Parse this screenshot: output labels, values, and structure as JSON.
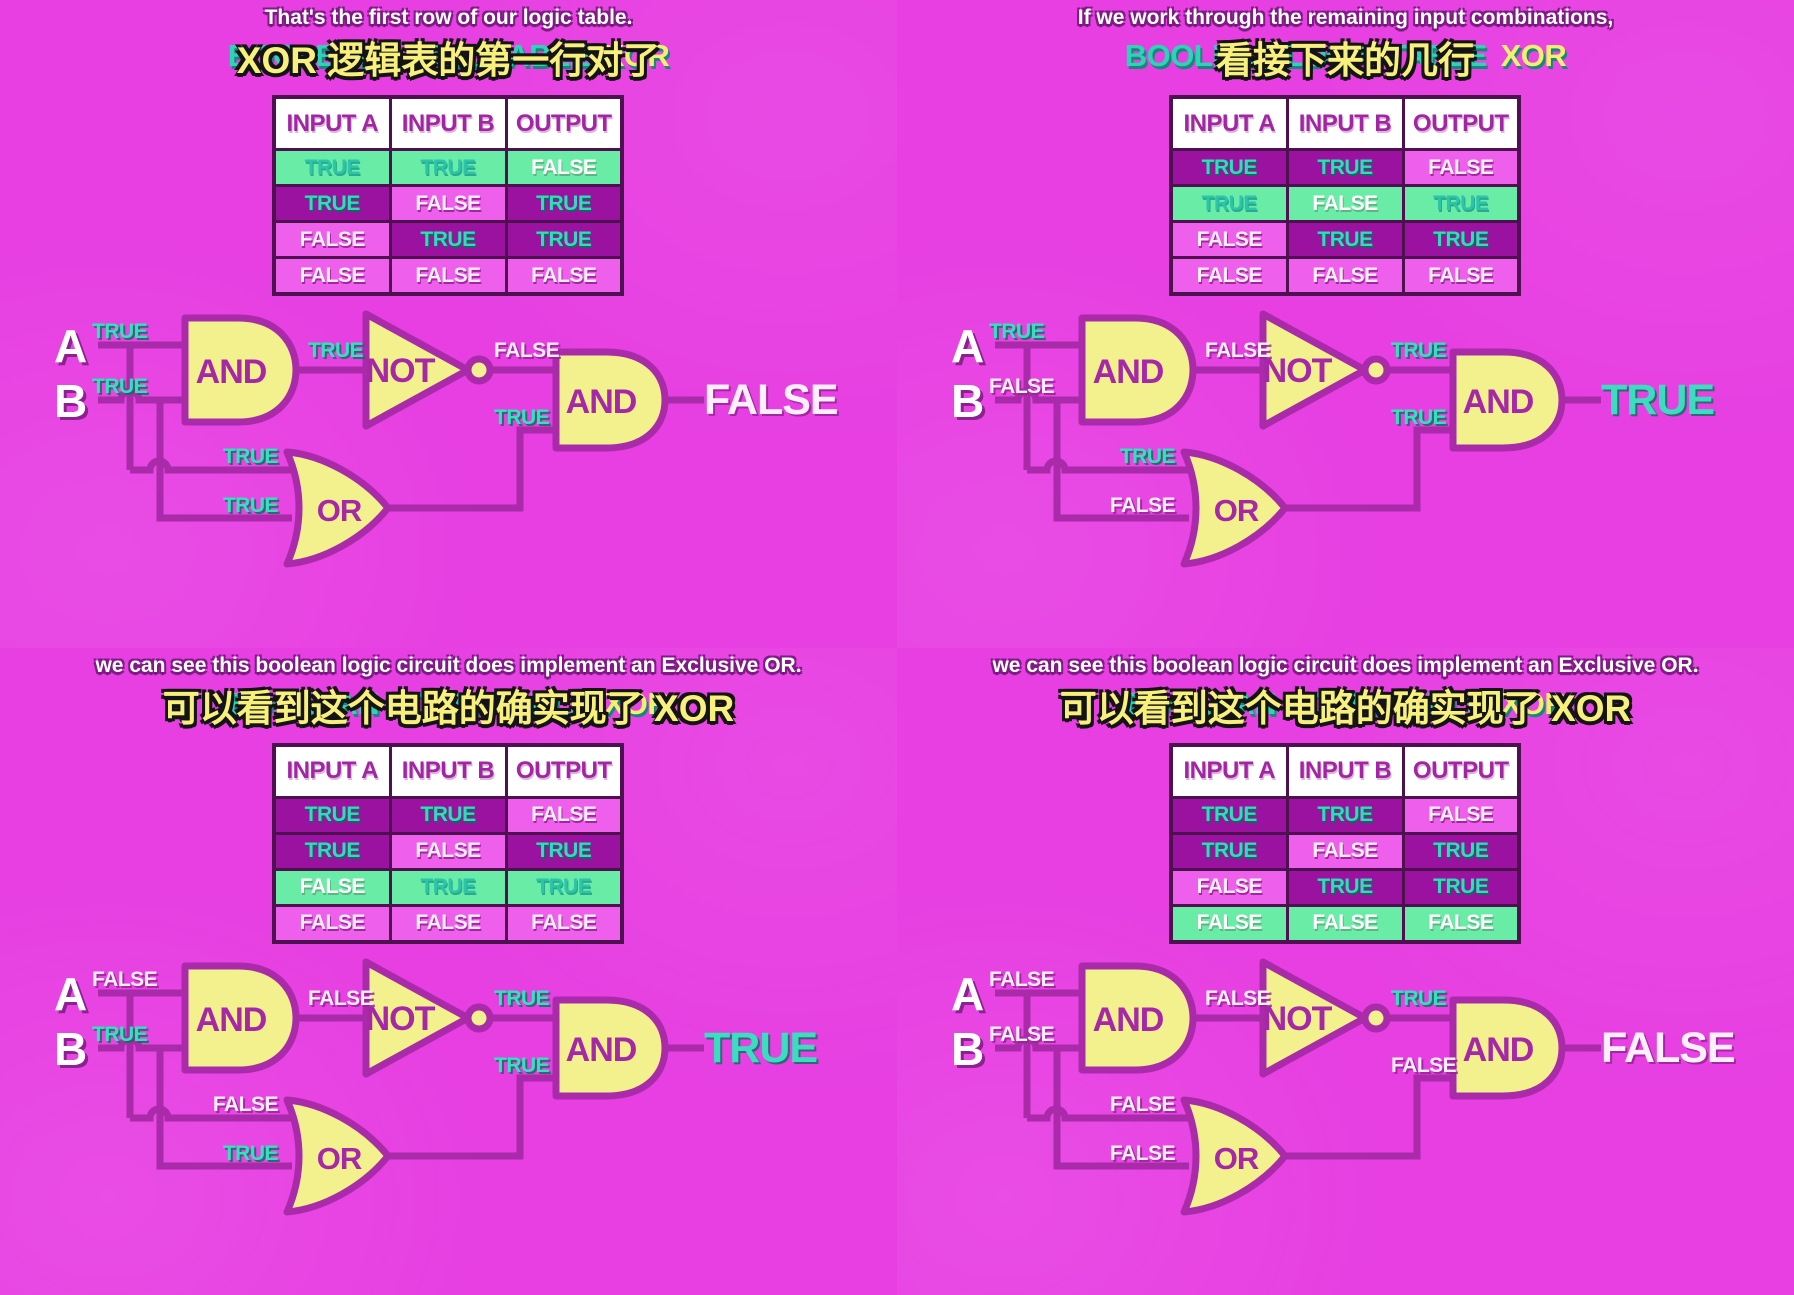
{
  "colors": {
    "background": "#e73fe2",
    "wire": "#a92ba9",
    "gate_fill": "#f3f08e",
    "true_text": "#3cdcc1",
    "false_text": "#ffeefb",
    "true_cell_bg": "#9c12a0",
    "false_cell_bg": "#ee5fec",
    "highlight_row_bg": "#69eda6",
    "title_teal": "#2ed2b6",
    "subtitle_yellow": "#f8f07d"
  },
  "frames": [
    {
      "subtitle_en": "That's the first row of our logic table.",
      "subtitle_zh": "XOR 逻辑表的第一行对了",
      "title_main": "BOOLEAN LOGIC TABLE",
      "title_accent": "XOR",
      "table": {
        "headers": [
          "INPUT A",
          "INPUT B",
          "OUTPUT"
        ],
        "rows": [
          {
            "cells": [
              "TRUE",
              "TRUE",
              "FALSE"
            ],
            "highlighted": true
          },
          {
            "cells": [
              "TRUE",
              "FALSE",
              "TRUE"
            ],
            "highlighted": false
          },
          {
            "cells": [
              "FALSE",
              "TRUE",
              "TRUE"
            ],
            "highlighted": false
          },
          {
            "cells": [
              "FALSE",
              "FALSE",
              "FALSE"
            ],
            "highlighted": false
          }
        ]
      },
      "circuit": {
        "input_a_label": "A",
        "input_b_label": "B",
        "input_a": "TRUE",
        "input_b": "TRUE",
        "gate_and1": "AND",
        "gate_not": "NOT",
        "gate_or": "OR",
        "gate_and2": "AND",
        "and1_out": "TRUE",
        "not_out": "FALSE",
        "or_in_top": "TRUE",
        "or_in_bottom": "TRUE",
        "and2_in_bottom": "TRUE",
        "output": "FALSE"
      }
    },
    {
      "subtitle_en": "If we work through the remaining input combinations,",
      "subtitle_zh": "看接下来的几行",
      "title_main": "BOOLEAN LOGIC TABLE",
      "title_accent": "XOR",
      "table": {
        "headers": [
          "INPUT A",
          "INPUT B",
          "OUTPUT"
        ],
        "rows": [
          {
            "cells": [
              "TRUE",
              "TRUE",
              "FALSE"
            ],
            "highlighted": false
          },
          {
            "cells": [
              "TRUE",
              "FALSE",
              "TRUE"
            ],
            "highlighted": true
          },
          {
            "cells": [
              "FALSE",
              "TRUE",
              "TRUE"
            ],
            "highlighted": false
          },
          {
            "cells": [
              "FALSE",
              "FALSE",
              "FALSE"
            ],
            "highlighted": false
          }
        ]
      },
      "circuit": {
        "input_a_label": "A",
        "input_b_label": "B",
        "input_a": "TRUE",
        "input_b": "FALSE",
        "gate_and1": "AND",
        "gate_not": "NOT",
        "gate_or": "OR",
        "gate_and2": "AND",
        "and1_out": "FALSE",
        "not_out": "TRUE",
        "or_in_top": "TRUE",
        "or_in_bottom": "FALSE",
        "and2_in_bottom": "TRUE",
        "output": "TRUE"
      }
    },
    {
      "subtitle_en": "we can see this boolean logic circuit does implement an Exclusive OR.",
      "subtitle_zh": "可以看到这个电路的确实现了 XOR",
      "title_main": "BOOLEAN LOGIC TABLE",
      "title_accent": "XOR",
      "table": {
        "headers": [
          "INPUT A",
          "INPUT B",
          "OUTPUT"
        ],
        "rows": [
          {
            "cells": [
              "TRUE",
              "TRUE",
              "FALSE"
            ],
            "highlighted": false
          },
          {
            "cells": [
              "TRUE",
              "FALSE",
              "TRUE"
            ],
            "highlighted": false
          },
          {
            "cells": [
              "FALSE",
              "TRUE",
              "TRUE"
            ],
            "highlighted": true
          },
          {
            "cells": [
              "FALSE",
              "FALSE",
              "FALSE"
            ],
            "highlighted": false
          }
        ]
      },
      "circuit": {
        "input_a_label": "A",
        "input_b_label": "B",
        "input_a": "FALSE",
        "input_b": "TRUE",
        "gate_and1": "AND",
        "gate_not": "NOT",
        "gate_or": "OR",
        "gate_and2": "AND",
        "and1_out": "FALSE",
        "not_out": "TRUE",
        "or_in_top": "FALSE",
        "or_in_bottom": "TRUE",
        "and2_in_bottom": "TRUE",
        "output": "TRUE"
      }
    },
    {
      "subtitle_en": "we can see this boolean logic circuit does implement an Exclusive OR.",
      "subtitle_zh": "可以看到这个电路的确实现了 XOR",
      "title_main": "BOOLEAN LOGIC TABLE",
      "title_accent": "XOR",
      "table": {
        "headers": [
          "INPUT A",
          "INPUT B",
          "OUTPUT"
        ],
        "rows": [
          {
            "cells": [
              "TRUE",
              "TRUE",
              "FALSE"
            ],
            "highlighted": false
          },
          {
            "cells": [
              "TRUE",
              "FALSE",
              "TRUE"
            ],
            "highlighted": false
          },
          {
            "cells": [
              "FALSE",
              "TRUE",
              "TRUE"
            ],
            "highlighted": false
          },
          {
            "cells": [
              "FALSE",
              "FALSE",
              "FALSE"
            ],
            "highlighted": true
          }
        ]
      },
      "circuit": {
        "input_a_label": "A",
        "input_b_label": "B",
        "input_a": "FALSE",
        "input_b": "FALSE",
        "gate_and1": "AND",
        "gate_not": "NOT",
        "gate_or": "OR",
        "gate_and2": "AND",
        "and1_out": "FALSE",
        "not_out": "TRUE",
        "or_in_top": "FALSE",
        "or_in_bottom": "FALSE",
        "and2_in_bottom": "FALSE",
        "output": "FALSE"
      }
    }
  ]
}
